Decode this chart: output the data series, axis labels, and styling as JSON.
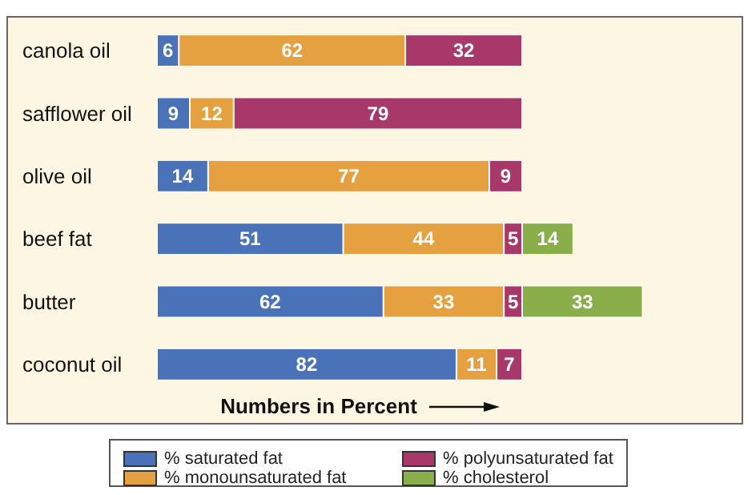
{
  "chart_data": {
    "type": "bar",
    "orientation": "horizontal",
    "stacked": true,
    "data_labels": true,
    "grid": false,
    "legend": "bottom",
    "xlabel": "Numbers in Percent",
    "categories": [
      "canola oil",
      "safflower oil",
      "olive oil",
      "beef fat",
      "butter",
      "coconut oil"
    ],
    "series": [
      {
        "name": "% saturated fat",
        "color": "#4a72b8",
        "values": [
          6,
          9,
          14,
          51,
          62,
          82
        ]
      },
      {
        "name": "% monounsaturated fat",
        "color": "#e5a040",
        "values": [
          62,
          12,
          77,
          44,
          33,
          11
        ]
      },
      {
        "name": "% polyunsaturated fat",
        "color": "#a8386a",
        "values": [
          32,
          79,
          9,
          5,
          5,
          7
        ]
      },
      {
        "name": "% cholesterol",
        "color": "#8aae4a",
        "values": [
          null,
          null,
          null,
          14,
          33,
          null
        ]
      }
    ]
  }
}
